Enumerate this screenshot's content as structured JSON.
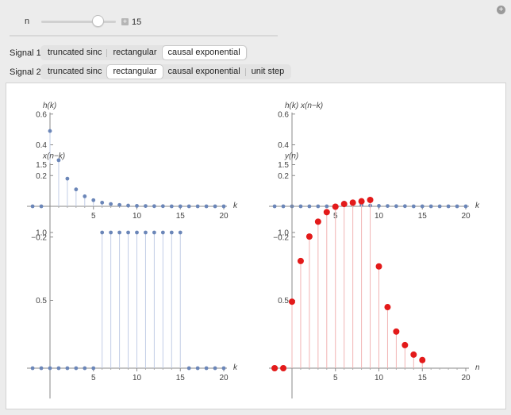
{
  "controls": {
    "slider": {
      "label": "n",
      "value": "15",
      "min": 0,
      "max": 20,
      "plus_symbol": "+"
    },
    "corner_button_symbol": "+",
    "signal1": {
      "label": "Signal 1",
      "options": [
        "truncated sinc",
        "rectangular",
        "causal exponential"
      ],
      "selected": "causal exponential"
    },
    "signal2": {
      "label": "Signal 2",
      "options": [
        "truncated sinc",
        "rectangular",
        "causal exponential",
        "unit step"
      ],
      "selected": "rectangular"
    }
  },
  "colors": {
    "stem_blue": "#6b86b8",
    "stem_blue_line": "#c2cde6",
    "stem_red": "#e31a1a",
    "stem_red_line": "#f2b4b4"
  },
  "chart_data": [
    {
      "type": "stem",
      "title": "",
      "ylabel": "h(k)",
      "xlabel": "k",
      "xlim": [
        -2,
        20
      ],
      "ylim": [
        -0.2,
        0.6
      ],
      "xticks": [
        5,
        10,
        15,
        20
      ],
      "yticks": [
        -0.2,
        0.2,
        0.4,
        0.6
      ],
      "x": [
        -2,
        -1,
        0,
        1,
        2,
        3,
        4,
        5,
        6,
        7,
        8,
        9,
        10,
        11,
        12,
        13,
        14,
        15,
        16,
        17,
        18,
        19,
        20
      ],
      "values": [
        0,
        0,
        0.49,
        0.3,
        0.18,
        0.11,
        0.065,
        0.04,
        0.024,
        0.015,
        0.009,
        0.005,
        0.003,
        0.002,
        0.001,
        0.001,
        0,
        0,
        0,
        0,
        0,
        0,
        0
      ],
      "color": "blue"
    },
    {
      "type": "stem",
      "title": "",
      "ylabel": "h(k) x(n−k)",
      "xlabel": "k",
      "xlim": [
        -2,
        20
      ],
      "ylim": [
        -0.2,
        0.6
      ],
      "xticks": [
        5,
        10,
        15,
        20
      ],
      "yticks": [
        -0.2,
        0.2,
        0.4,
        0.6
      ],
      "x": [
        -2,
        -1,
        0,
        1,
        2,
        3,
        4,
        5,
        6,
        7,
        8,
        9,
        10,
        11,
        12,
        13,
        14,
        15,
        16,
        17,
        18,
        19,
        20
      ],
      "values": [
        0,
        0,
        0,
        0,
        0,
        0,
        0,
        0,
        0.024,
        0.015,
        0.009,
        0.005,
        0.003,
        0.002,
        0.001,
        0.001,
        0,
        0,
        0,
        0,
        0,
        0,
        0
      ],
      "color": "blue"
    },
    {
      "type": "stem",
      "title": "",
      "ylabel": "x(n−k)",
      "xlabel": "k",
      "xlim": [
        -2,
        20
      ],
      "ylim": [
        -0.2,
        1.5
      ],
      "xticks": [
        5,
        10,
        15,
        20
      ],
      "yticks": [
        0.5,
        1.0,
        1.5
      ],
      "x": [
        -2,
        -1,
        0,
        1,
        2,
        3,
        4,
        5,
        6,
        7,
        8,
        9,
        10,
        11,
        12,
        13,
        14,
        15,
        16,
        17,
        18,
        19,
        20
      ],
      "values": [
        0,
        0,
        0,
        0,
        0,
        0,
        0,
        0,
        1,
        1,
        1,
        1,
        1,
        1,
        1,
        1,
        1,
        1,
        0,
        0,
        0,
        0,
        0
      ],
      "color": "blue"
    },
    {
      "type": "stem",
      "title": "",
      "ylabel": "y(n)",
      "xlabel": "n",
      "xlim": [
        -2,
        20
      ],
      "ylim": [
        -0.2,
        1.5
      ],
      "xticks": [
        5,
        10,
        15,
        20
      ],
      "yticks": [
        0.5,
        1.0,
        1.5
      ],
      "x": [
        -2,
        -1,
        0,
        1,
        2,
        3,
        4,
        5,
        6,
        7,
        8,
        9,
        10,
        11,
        12,
        13,
        14,
        15
      ],
      "values": [
        0,
        0,
        0.49,
        0.79,
        0.97,
        1.08,
        1.15,
        1.19,
        1.21,
        1.22,
        1.23,
        1.24,
        0.75,
        0.45,
        0.27,
        0.17,
        0.1,
        0.06
      ],
      "color": "red"
    }
  ]
}
